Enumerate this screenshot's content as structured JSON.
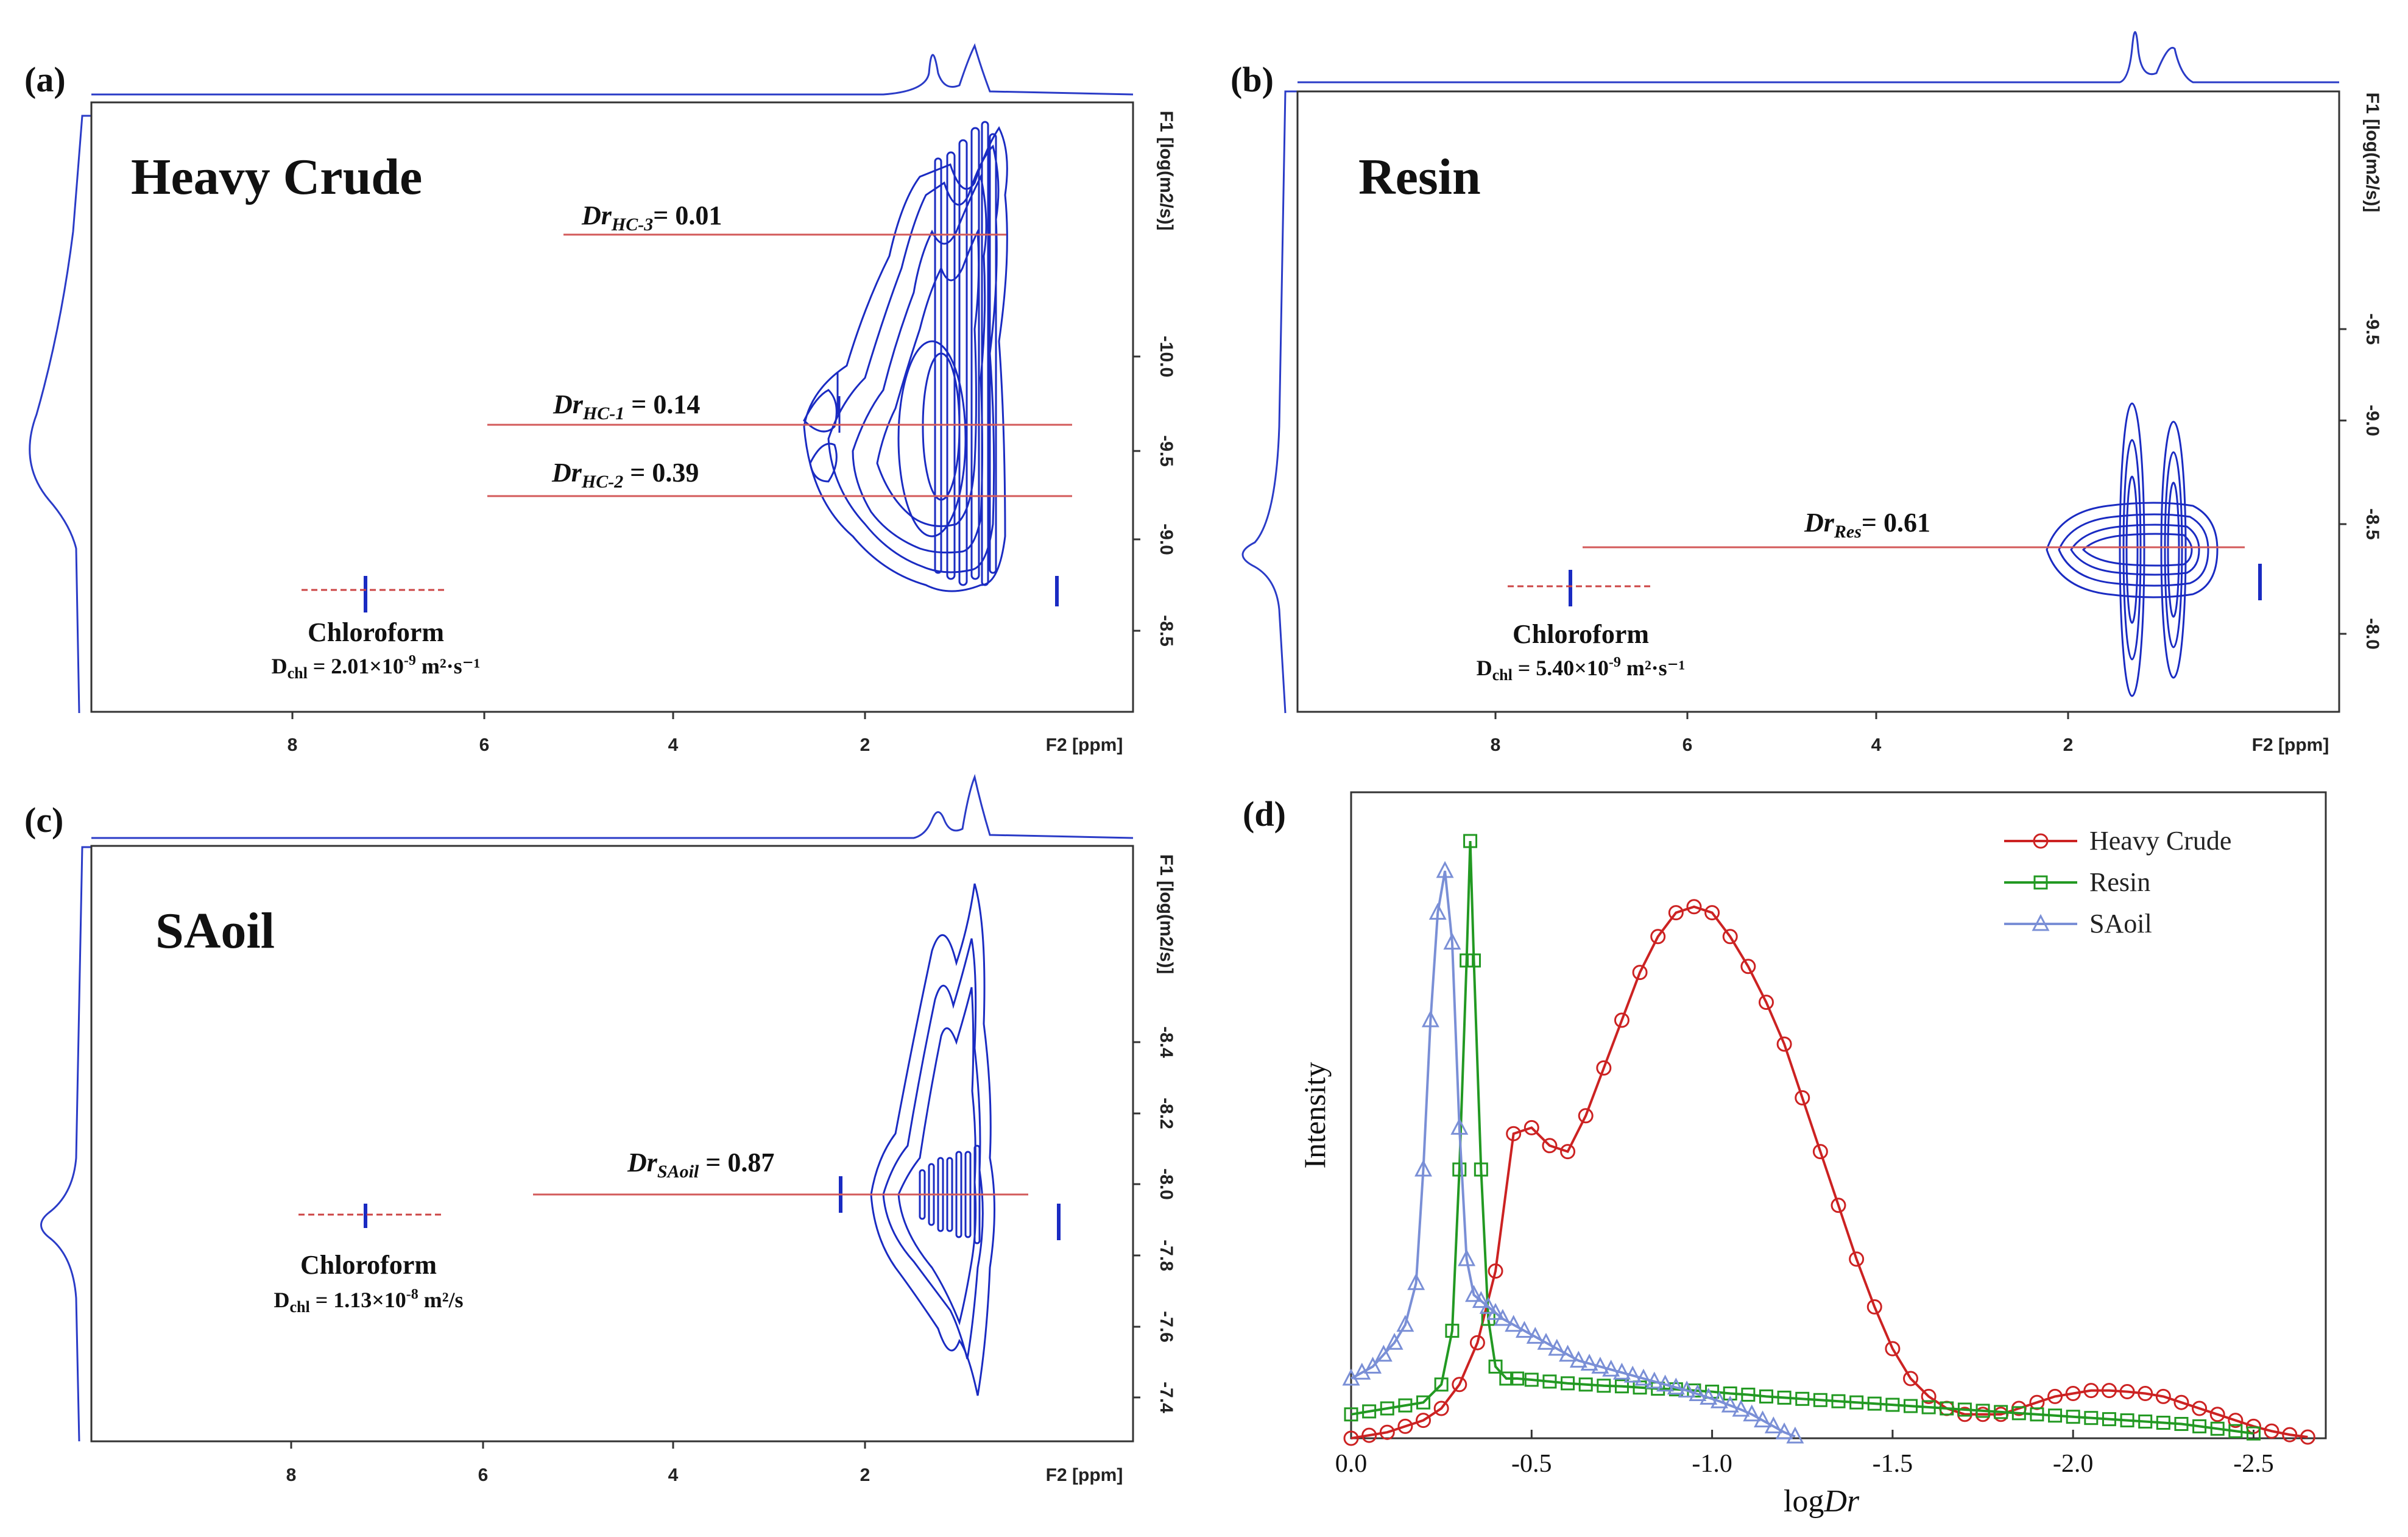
{
  "figure": {
    "panels": [
      {
        "id": "a",
        "panel_label": "(a)",
        "sample_title": "Heavy Crude",
        "y_axis_label": "F1 [log(m2/s)]",
        "x_axis_label": "F2 [ppm]",
        "x_ticks": [
          "8",
          "6",
          "4",
          "2"
        ],
        "y_ticks": [
          "-10.0",
          "-9.5",
          "-9.0",
          "-8.5"
        ],
        "solvent_label": "Chloroform",
        "solvent_diffusion": "D",
        "solvent_diffusion_sub": "chl",
        "solvent_diffusion_value": " = 2.01×10",
        "solvent_diffusion_exp": "-9",
        "solvent_diffusion_unit": " m²·s⁻¹",
        "annotations": [
          {
            "prefix": "Dr",
            "sub": "HC-3",
            "value": "= 0.01"
          },
          {
            "prefix": "Dr",
            "sub": "HC-1",
            "value": " = 0.14"
          },
          {
            "prefix": "Dr",
            "sub": "HC-2",
            "value": " = 0.39"
          }
        ]
      },
      {
        "id": "b",
        "panel_label": "(b)",
        "sample_title": "Resin",
        "y_axis_label": "F1 [log(m2/s)]",
        "x_axis_label": "F2 [ppm]",
        "x_ticks": [
          "8",
          "6",
          "4",
          "2"
        ],
        "y_ticks": [
          "-9.5",
          "-9.0",
          "-8.5",
          "-8.0"
        ],
        "solvent_label": "Chloroform",
        "solvent_diffusion": "D",
        "solvent_diffusion_sub": "chl",
        "solvent_diffusion_value": " = 5.40×10",
        "solvent_diffusion_exp": "-9",
        "solvent_diffusion_unit": " m²·s⁻¹",
        "annotations": [
          {
            "prefix": "Dr",
            "sub": "Res",
            "value": "= 0.61"
          }
        ]
      },
      {
        "id": "c",
        "panel_label": "(c)",
        "sample_title": "SAoil",
        "y_axis_label": "F1 [log(m2/s)]",
        "x_axis_label": "F2 [ppm]",
        "x_ticks": [
          "8",
          "6",
          "4",
          "2"
        ],
        "y_ticks": [
          "-8.4",
          "-8.2",
          "-8.0",
          "-7.8",
          "-7.6",
          "-7.4"
        ],
        "solvent_label": "Chloroform",
        "solvent_diffusion": "D",
        "solvent_diffusion_sub": "chl",
        "solvent_diffusion_value": " = 1.13×10",
        "solvent_diffusion_exp": "-8",
        "solvent_diffusion_unit": " m²/s",
        "annotations": [
          {
            "prefix": "Dr",
            "sub": "SAoil",
            "value": " = 0.87"
          }
        ]
      }
    ],
    "panel_d_label": "(d)"
  },
  "chart_data": {
    "type": "line",
    "title": "",
    "xlabel_prefix": "log",
    "xlabel_italic": "Dr",
    "ylabel": "Intensity",
    "xlim": [
      0.0,
      -2.7
    ],
    "ylim": [
      0,
      1.0
    ],
    "x_ticks": [
      0.0,
      -0.5,
      -1.0,
      -1.5,
      -2.0,
      -2.5
    ],
    "x_tick_labels": [
      "0.0",
      "-0.5",
      "-1.0",
      "-1.5",
      "-2.0",
      "-2.5"
    ],
    "legend_position": "top-right",
    "series": [
      {
        "name": "Heavy Crude",
        "color": "#cc2222",
        "marker": "circle",
        "x": [
          0.0,
          -0.05,
          -0.1,
          -0.15,
          -0.2,
          -0.25,
          -0.3,
          -0.35,
          -0.4,
          -0.45,
          -0.5,
          -0.55,
          -0.6,
          -0.65,
          -0.7,
          -0.75,
          -0.8,
          -0.85,
          -0.9,
          -0.95,
          -1.0,
          -1.05,
          -1.1,
          -1.15,
          -1.2,
          -1.25,
          -1.3,
          -1.35,
          -1.4,
          -1.45,
          -1.5,
          -1.55,
          -1.6,
          -1.65,
          -1.7,
          -1.75,
          -1.8,
          -1.85,
          -1.9,
          -1.95,
          -2.0,
          -2.05,
          -2.1,
          -2.15,
          -2.2,
          -2.25,
          -2.3,
          -2.35,
          -2.4,
          -2.45,
          -2.5,
          -2.55,
          -2.6,
          -2.65
        ],
        "values": [
          0.0,
          0.005,
          0.01,
          0.02,
          0.03,
          0.05,
          0.09,
          0.16,
          0.28,
          0.51,
          0.52,
          0.49,
          0.48,
          0.54,
          0.62,
          0.7,
          0.78,
          0.84,
          0.88,
          0.89,
          0.88,
          0.84,
          0.79,
          0.73,
          0.66,
          0.57,
          0.48,
          0.39,
          0.3,
          0.22,
          0.15,
          0.1,
          0.07,
          0.05,
          0.04,
          0.04,
          0.04,
          0.05,
          0.06,
          0.07,
          0.075,
          0.08,
          0.08,
          0.078,
          0.075,
          0.07,
          0.06,
          0.05,
          0.04,
          0.03,
          0.02,
          0.012,
          0.006,
          0.002
        ]
      },
      {
        "name": "Resin",
        "color": "#229922",
        "marker": "square",
        "x": [
          0.0,
          -0.05,
          -0.1,
          -0.15,
          -0.2,
          -0.25,
          -0.28,
          -0.3,
          -0.32,
          -0.33,
          -0.34,
          -0.36,
          -0.38,
          -0.4,
          -0.43,
          -0.46,
          -0.5,
          -0.55,
          -0.6,
          -0.65,
          -0.7,
          -0.75,
          -0.8,
          -0.85,
          -0.9,
          -0.95,
          -1.0,
          -1.05,
          -1.1,
          -1.15,
          -1.2,
          -1.25,
          -1.3,
          -1.35,
          -1.4,
          -1.45,
          -1.5,
          -1.55,
          -1.6,
          -1.65,
          -1.7,
          -1.75,
          -1.8,
          -1.85,
          -1.9,
          -1.95,
          -2.0,
          -2.05,
          -2.1,
          -2.15,
          -2.2,
          -2.25,
          -2.3,
          -2.35,
          -2.4,
          -2.45,
          -2.5
        ],
        "values": [
          0.04,
          0.045,
          0.05,
          0.055,
          0.06,
          0.09,
          0.18,
          0.45,
          0.8,
          1.0,
          0.8,
          0.45,
          0.2,
          0.12,
          0.1,
          0.1,
          0.098,
          0.095,
          0.092,
          0.09,
          0.088,
          0.087,
          0.085,
          0.083,
          0.082,
          0.08,
          0.078,
          0.075,
          0.073,
          0.07,
          0.068,
          0.066,
          0.064,
          0.062,
          0.06,
          0.058,
          0.056,
          0.054,
          0.052,
          0.05,
          0.048,
          0.046,
          0.044,
          0.042,
          0.04,
          0.038,
          0.036,
          0.034,
          0.032,
          0.03,
          0.028,
          0.026,
          0.024,
          0.02,
          0.016,
          0.012,
          0.008
        ]
      },
      {
        "name": "SAoil",
        "color": "#7a8fd6",
        "marker": "triangle",
        "x": [
          0.0,
          -0.03,
          -0.06,
          -0.09,
          -0.12,
          -0.15,
          -0.18,
          -0.2,
          -0.22,
          -0.24,
          -0.26,
          -0.28,
          -0.3,
          -0.32,
          -0.34,
          -0.36,
          -0.38,
          -0.4,
          -0.42,
          -0.45,
          -0.48,
          -0.51,
          -0.54,
          -0.57,
          -0.6,
          -0.63,
          -0.66,
          -0.69,
          -0.72,
          -0.75,
          -0.78,
          -0.81,
          -0.84,
          -0.87,
          -0.9,
          -0.93,
          -0.96,
          -0.99,
          -1.02,
          -1.05,
          -1.08,
          -1.11,
          -1.14,
          -1.17,
          -1.2,
          -1.23
        ],
        "values": [
          0.1,
          0.11,
          0.12,
          0.14,
          0.16,
          0.19,
          0.26,
          0.45,
          0.7,
          0.88,
          0.95,
          0.83,
          0.52,
          0.3,
          0.24,
          0.23,
          0.22,
          0.21,
          0.2,
          0.19,
          0.18,
          0.17,
          0.16,
          0.15,
          0.14,
          0.13,
          0.125,
          0.12,
          0.115,
          0.11,
          0.105,
          0.1,
          0.095,
          0.09,
          0.085,
          0.08,
          0.074,
          0.068,
          0.062,
          0.055,
          0.048,
          0.04,
          0.03,
          0.02,
          0.01,
          0.003
        ]
      }
    ]
  }
}
